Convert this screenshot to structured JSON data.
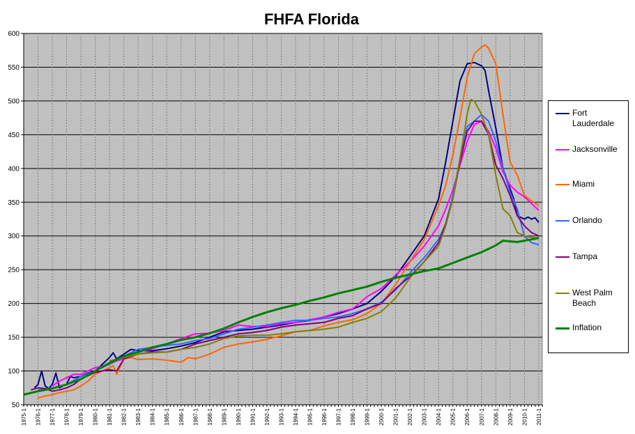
{
  "chart_data": {
    "type": "line",
    "title": "FHFA Florida",
    "xlabel": "",
    "ylabel": "",
    "ylim": [
      50,
      600
    ],
    "yticks": [
      50,
      100,
      150,
      200,
      250,
      300,
      350,
      400,
      450,
      500,
      550,
      600
    ],
    "xlim": [
      1975.0,
      2011.25
    ],
    "x_tick_labels": [
      "1975-1",
      "1976-1",
      "1977-1",
      "1978-1",
      "1979-1",
      "1980-1",
      "1981-1",
      "1982-1",
      "1983-1",
      "1984-1",
      "1985-1",
      "1986-1",
      "1987-1",
      "1988-1",
      "1989-1",
      "1990-1",
      "1991-1",
      "1992-1",
      "1993-1",
      "1994-1",
      "1995-1",
      "1996-1",
      "1997-1",
      "1998-1",
      "1999-1",
      "2000-1",
      "2001-1",
      "2002-1",
      "2003-1",
      "2004-1",
      "2005-1",
      "2006-1",
      "2007-1",
      "2008-1",
      "2009-1",
      "2010-1",
      "2011-1"
    ],
    "grid": true,
    "legend_position": "right",
    "plot_background": "#c0c0c0",
    "series": [
      {
        "name": "Fort Lauderdale",
        "color": "#000080",
        "width": 2,
        "x": [
          1975.75,
          1976.0,
          1976.25,
          1976.5,
          1976.75,
          1977.0,
          1977.25,
          1977.5,
          1977.75,
          1978.0,
          1978.25,
          1978.5,
          1979.0,
          1979.5,
          1980.0,
          1980.5,
          1981.0,
          1981.25,
          1981.5,
          1982.0,
          1982.5,
          1983.0,
          1984.0,
          1985.0,
          1986.0,
          1987.0,
          1988.0,
          1989.0,
          1990.0,
          1991.0,
          1992.0,
          1993.0,
          1994.0,
          1995.0,
          1996.0,
          1997.0,
          1998.0,
          1999.0,
          2000.0,
          2001.0,
          2002.0,
          2003.0,
          2004.0,
          2004.5,
          2005.0,
          2005.5,
          2006.0,
          2006.5,
          2007.0,
          2007.25,
          2007.5,
          2008.0,
          2008.5,
          2009.0,
          2009.25,
          2009.5,
          2010.0,
          2010.25,
          2010.5,
          2010.75,
          2011.0
        ],
        "y": [
          75,
          80,
          100,
          78,
          74,
          80,
          97,
          75,
          78,
          80,
          92,
          90,
          92,
          97,
          100,
          110,
          120,
          127,
          118,
          125,
          132,
          130,
          130,
          133,
          137,
          142,
          150,
          158,
          160,
          162,
          165,
          168,
          172,
          175,
          180,
          185,
          192,
          200,
          218,
          240,
          270,
          300,
          355,
          410,
          470,
          530,
          555,
          557,
          552,
          545,
          515,
          460,
          400,
          370,
          355,
          330,
          325,
          328,
          325,
          327,
          320
        ]
      },
      {
        "name": "Jacksonville",
        "color": "#ff00ff",
        "width": 2,
        "x": [
          1977.0,
          1977.5,
          1978.0,
          1978.5,
          1979.0,
          1979.5,
          1980.0,
          1980.5,
          1981.0,
          1981.5,
          1982.0,
          1982.5,
          1983.0,
          1984.0,
          1985.0,
          1986.0,
          1987.0,
          1988.0,
          1989.0,
          1990.0,
          1991.0,
          1992.0,
          1993.0,
          1994.0,
          1995.0,
          1996.0,
          1997.0,
          1998.0,
          1999.0,
          2000.0,
          2001.0,
          2002.0,
          2003.0,
          2004.0,
          2004.5,
          2005.0,
          2005.5,
          2006.0,
          2006.5,
          2007.0,
          2007.5,
          2008.0,
          2008.5,
          2009.0,
          2009.5,
          2010.0,
          2010.5,
          2011.0
        ],
        "y": [
          78,
          85,
          90,
          95,
          95,
          100,
          105,
          107,
          110,
          115,
          118,
          125,
          128,
          133,
          140,
          148,
          155,
          156,
          160,
          168,
          166,
          166,
          170,
          172,
          176,
          180,
          187,
          192,
          210,
          222,
          242,
          262,
          285,
          315,
          340,
          368,
          405,
          440,
          465,
          470,
          455,
          430,
          395,
          375,
          365,
          358,
          348,
          338
        ]
      },
      {
        "name": "Miami",
        "color": "#ff6600",
        "width": 2,
        "x": [
          1976.0,
          1976.5,
          1977.0,
          1977.5,
          1978.0,
          1978.5,
          1979.0,
          1979.5,
          1980.0,
          1980.5,
          1981.0,
          1981.25,
          1981.5,
          1982.0,
          1982.5,
          1983.0,
          1984.0,
          1985.0,
          1986.0,
          1986.5,
          1987.0,
          1988.0,
          1989.0,
          1990.0,
          1991.0,
          1992.0,
          1993.0,
          1994.0,
          1995.0,
          1996.0,
          1997.0,
          1998.0,
          1999.0,
          2000.0,
          2001.0,
          2002.0,
          2003.0,
          2004.0,
          2004.5,
          2005.0,
          2005.5,
          2006.0,
          2006.5,
          2007.0,
          2007.25,
          2007.5,
          2008.0,
          2008.5,
          2009.0,
          2009.5,
          2010.0,
          2010.5,
          2011.0
        ],
        "y": [
          60,
          63,
          65,
          68,
          70,
          72,
          78,
          85,
          95,
          100,
          105,
          108,
          95,
          118,
          120,
          117,
          118,
          116,
          113,
          120,
          118,
          125,
          135,
          140,
          143,
          147,
          152,
          158,
          160,
          167,
          172,
          176,
          185,
          200,
          228,
          262,
          295,
          345,
          375,
          420,
          475,
          535,
          570,
          580,
          583,
          578,
          555,
          480,
          410,
          390,
          360,
          352,
          345
        ]
      },
      {
        "name": "Orlando",
        "color": "#3366ff",
        "width": 2,
        "x": [
          1976.0,
          1977.0,
          1978.0,
          1979.0,
          1980.0,
          1981.0,
          1982.0,
          1983.0,
          1984.0,
          1985.0,
          1986.0,
          1987.0,
          1988.0,
          1989.0,
          1990.0,
          1991.0,
          1992.0,
          1993.0,
          1994.0,
          1995.0,
          1996.0,
          1997.0,
          1998.0,
          1999.0,
          2000.0,
          2001.0,
          2002.0,
          2003.0,
          2004.0,
          2004.5,
          2005.0,
          2005.5,
          2006.0,
          2006.5,
          2007.0,
          2007.5,
          2008.0,
          2008.5,
          2009.0,
          2009.5,
          2010.0,
          2010.5,
          2011.0
        ],
        "y": [
          72,
          75,
          80,
          92,
          100,
          110,
          122,
          132,
          135,
          138,
          140,
          145,
          148,
          155,
          162,
          165,
          168,
          172,
          175,
          175,
          178,
          180,
          185,
          192,
          202,
          220,
          245,
          268,
          295,
          318,
          360,
          415,
          462,
          470,
          480,
          470,
          440,
          400,
          365,
          340,
          300,
          290,
          287
        ]
      },
      {
        "name": "Tampa",
        "color": "#800080",
        "width": 2,
        "x": [
          1975.5,
          1976.0,
          1976.5,
          1977.0,
          1977.5,
          1978.0,
          1978.5,
          1979.0,
          1980.0,
          1980.5,
          1981.0,
          1981.5,
          1982.0,
          1983.0,
          1984.0,
          1985.0,
          1986.0,
          1987.0,
          1988.0,
          1989.0,
          1990.0,
          1991.0,
          1992.0,
          1993.0,
          1994.0,
          1995.0,
          1996.0,
          1997.0,
          1998.0,
          1999.0,
          2000.0,
          2001.0,
          2002.0,
          2003.0,
          2004.0,
          2004.5,
          2005.0,
          2005.5,
          2006.0,
          2006.5,
          2007.0,
          2007.5,
          2008.0,
          2008.5,
          2009.0,
          2009.5,
          2010.0,
          2010.5,
          2011.0
        ],
        "y": [
          72,
          75,
          74,
          70,
          72,
          75,
          80,
          88,
          98,
          100,
          102,
          100,
          118,
          125,
          128,
          128,
          132,
          140,
          145,
          150,
          155,
          157,
          160,
          165,
          168,
          170,
          172,
          178,
          182,
          192,
          200,
          222,
          240,
          262,
          290,
          318,
          355,
          410,
          455,
          470,
          470,
          450,
          405,
          385,
          360,
          330,
          315,
          305,
          300
        ]
      },
      {
        "name": "West Palm Beach",
        "color": "#808000",
        "width": 2,
        "x": [
          1981.0,
          1982.0,
          1983.0,
          1984.0,
          1985.0,
          1986.0,
          1987.0,
          1988.0,
          1989.0,
          1990.0,
          1991.0,
          1992.0,
          1993.0,
          1994.0,
          1995.0,
          1996.0,
          1997.0,
          1998.0,
          1999.0,
          2000.0,
          2001.0,
          2002.0,
          2003.0,
          2004.0,
          2004.5,
          2005.0,
          2005.5,
          2006.0,
          2006.25,
          2006.5,
          2007.0,
          2007.5,
          2008.0,
          2008.5,
          2009.0,
          2009.5,
          2010.0,
          2010.5,
          2011.0
        ],
        "y": [
          115,
          120,
          125,
          127,
          128,
          132,
          135,
          140,
          148,
          152,
          153,
          153,
          155,
          158,
          160,
          162,
          165,
          172,
          178,
          188,
          208,
          238,
          262,
          285,
          315,
          355,
          415,
          480,
          502,
          500,
          480,
          450,
          390,
          340,
          330,
          305,
          300,
          298,
          296
        ]
      },
      {
        "name": "Inflation",
        "color": "#008000",
        "width": 3,
        "x": [
          1975.0,
          1976.0,
          1977.0,
          1978.0,
          1979.0,
          1980.0,
          1981.0,
          1982.0,
          1983.0,
          1984.0,
          1985.0,
          1986.0,
          1987.0,
          1988.0,
          1989.0,
          1990.0,
          1991.0,
          1992.0,
          1993.0,
          1994.0,
          1995.0,
          1996.0,
          1997.0,
          1998.0,
          1999.0,
          2000.0,
          2001.0,
          2002.0,
          2003.0,
          2004.0,
          2005.0,
          2006.0,
          2007.0,
          2008.0,
          2008.5,
          2009.0,
          2009.5,
          2010.0,
          2011.0
        ],
        "y": [
          65,
          70,
          74,
          80,
          88,
          100,
          112,
          122,
          128,
          135,
          140,
          146,
          150,
          156,
          163,
          172,
          180,
          187,
          193,
          198,
          204,
          209,
          215,
          220,
          225,
          232,
          238,
          243,
          248,
          252,
          260,
          268,
          276,
          286,
          293,
          292,
          291,
          293,
          297
        ]
      }
    ]
  }
}
